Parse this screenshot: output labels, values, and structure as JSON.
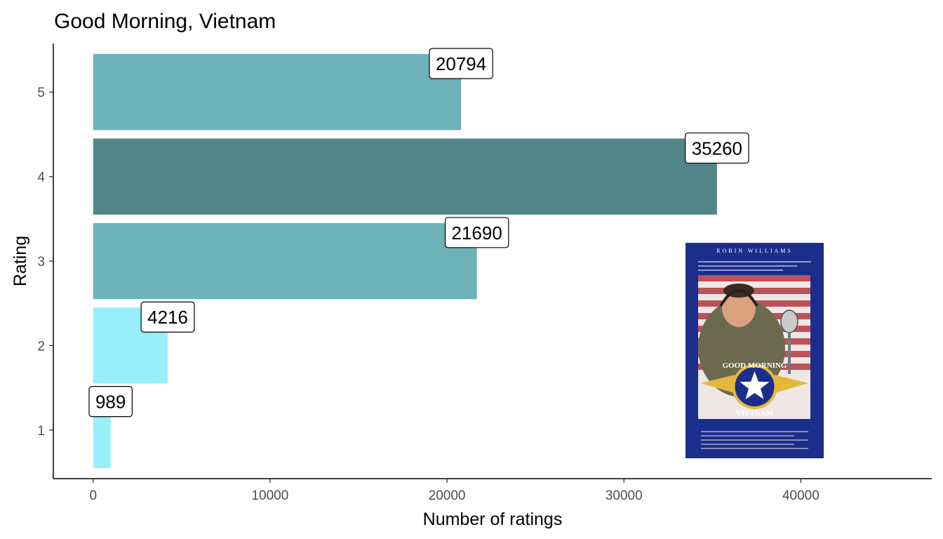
{
  "chart_data": {
    "type": "bar",
    "orientation": "horizontal",
    "title": "Good Morning, Vietnam",
    "xlabel": "Number of ratings",
    "ylabel": "Rating",
    "categories": [
      "1",
      "2",
      "3",
      "4",
      "5"
    ],
    "values": [
      989,
      4216,
      21690,
      35260,
      20794
    ],
    "data_labels": [
      "989",
      "4216",
      "21690",
      "35260",
      "20794"
    ],
    "bar_colors": [
      "#98effa",
      "#98effa",
      "#6eb2b9",
      "#528689",
      "#6eb2b9"
    ],
    "xlim": [
      -2250,
      47400
    ],
    "x_ticks": [
      0,
      10000,
      20000,
      30000,
      40000
    ],
    "x_tick_labels": [
      "0",
      "10000",
      "20000",
      "30000",
      "40000"
    ],
    "grid": false,
    "legend": "none"
  },
  "poster": {
    "header": "ROBIN WILLIAMS",
    "title_line1": "GOOD MORNING",
    "title_line2": "VIETNAM",
    "colors": {
      "background": "#1c2e8c",
      "gold": "#e3b93c"
    }
  }
}
